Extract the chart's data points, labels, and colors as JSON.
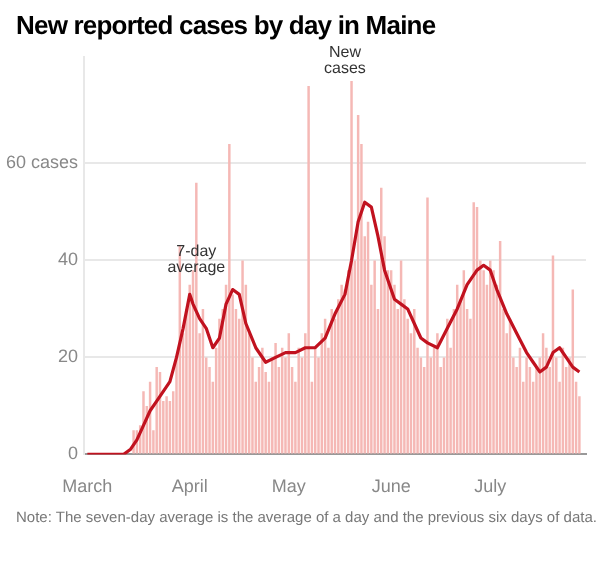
{
  "chart_data": {
    "type": "bar",
    "title": "New reported cases by day in Maine",
    "x": [
      "--03-01",
      "--03-02",
      "--03-03",
      "--03-04",
      "--03-05",
      "--03-06",
      "--03-07",
      "--03-08",
      "--03-09",
      "--03-10",
      "--03-11",
      "--03-12",
      "--03-13",
      "--03-14",
      "--03-15",
      "--03-16",
      "--03-17",
      "--03-18",
      "--03-19",
      "--03-20",
      "--03-21",
      "--03-22",
      "--03-23",
      "--03-24",
      "--03-25",
      "--03-26",
      "--03-27",
      "--03-28",
      "--03-29",
      "--03-30",
      "--03-31",
      "--04-01",
      "--04-02",
      "--04-03",
      "--04-04",
      "--04-05",
      "--04-06",
      "--04-07",
      "--04-08",
      "--04-09",
      "--04-10",
      "--04-11",
      "--04-12",
      "--04-13",
      "--04-14",
      "--04-15",
      "--04-16",
      "--04-17",
      "--04-18",
      "--04-19",
      "--04-20",
      "--04-21",
      "--04-22",
      "--04-23",
      "--04-24",
      "--04-25",
      "--04-26",
      "--04-27",
      "--04-28",
      "--04-29",
      "--04-30",
      "--05-01",
      "--05-02",
      "--05-03",
      "--05-04",
      "--05-05",
      "--05-06",
      "--05-07",
      "--05-08",
      "--05-09",
      "--05-10",
      "--05-11",
      "--05-12",
      "--05-13",
      "--05-14",
      "--05-15",
      "--05-16",
      "--05-17",
      "--05-18",
      "--05-19",
      "--05-20",
      "--05-21",
      "--05-22",
      "--05-23",
      "--05-24",
      "--05-25",
      "--05-26",
      "--05-27",
      "--05-28",
      "--05-29",
      "--05-30",
      "--05-31",
      "--06-01",
      "--06-02",
      "--06-03",
      "--06-04",
      "--06-05",
      "--06-06",
      "--06-07",
      "--06-08",
      "--06-09",
      "--06-10",
      "--06-11",
      "--06-12",
      "--06-13",
      "--06-14",
      "--06-15",
      "--06-16",
      "--06-17",
      "--06-18",
      "--06-19",
      "--06-20",
      "--06-21",
      "--06-22",
      "--06-23",
      "--06-24",
      "--06-25",
      "--06-26",
      "--06-27",
      "--06-28",
      "--06-29",
      "--06-30",
      "--07-01",
      "--07-02",
      "--07-03",
      "--07-04",
      "--07-05",
      "--07-06",
      "--07-07",
      "--07-08",
      "--07-09",
      "--07-10",
      "--07-11",
      "--07-12",
      "--07-13",
      "--07-14",
      "--07-15",
      "--07-16",
      "--07-17",
      "--07-18",
      "--07-19",
      "--07-20",
      "--07-21",
      "--07-22",
      "--07-23",
      "--07-24",
      "--07-25",
      "--07-26",
      "--07-27",
      "--07-28"
    ],
    "series": [
      {
        "color": "#f5b8b5",
        "values": [
          0,
          0,
          0,
          0,
          0,
          0,
          0,
          0,
          0,
          0,
          0,
          0,
          0,
          null,
          5,
          5,
          6,
          13,
          10,
          15,
          5,
          18,
          17,
          11,
          12,
          11,
          13,
          20,
          43,
          25,
          30,
          35,
          38,
          56,
          25,
          30,
          20,
          18,
          15,
          22,
          28,
          30,
          35,
          64,
          33,
          30,
          28,
          40,
          35,
          25,
          20,
          15,
          18,
          22,
          17,
          15,
          20,
          23,
          18,
          22,
          20,
          25,
          18,
          15,
          22,
          20,
          25,
          76,
          15,
          22,
          20,
          25,
          28,
          22,
          30,
          28,
          32,
          35,
          34,
          38,
          77,
          40,
          70,
          64,
          45,
          48,
          35,
          40,
          30,
          55,
          45,
          38,
          38,
          35,
          30,
          40,
          32,
          28,
          25,
          30,
          22,
          20,
          18,
          53,
          20,
          22,
          25,
          18,
          20,
          28,
          22,
          30,
          35,
          32,
          38,
          30,
          28,
          52,
          51,
          40,
          38,
          35,
          40,
          38,
          35,
          44,
          30,
          25,
          28,
          20,
          18,
          22,
          15,
          20,
          18,
          15,
          18,
          20,
          25,
          22,
          18,
          41,
          20,
          15,
          22,
          18,
          20,
          34,
          15,
          12
        ]
      },
      {
        "type": "line",
        "color": "#c1121f",
        "x": [
          "--03-01",
          "--03-12",
          "--03-14",
          "--03-16",
          "--03-18",
          "--03-20",
          "--03-22",
          "--03-24",
          "--03-26",
          "--03-28",
          "--03-30",
          "--04-01",
          "--04-02",
          "--04-04",
          "--04-06",
          "--04-08",
          "--04-10",
          "--04-12",
          "--04-14",
          "--04-16",
          "--04-18",
          "--04-21",
          "--04-24",
          "--04-27",
          "--04-30",
          "--05-03",
          "--05-06",
          "--05-09",
          "--05-12",
          "--05-15",
          "--05-18",
          "--05-20",
          "--05-22",
          "--05-24",
          "--05-26",
          "--05-28",
          "--05-30",
          "--06-02",
          "--06-04",
          "--06-06",
          "--06-08",
          "--06-10",
          "--06-12",
          "--06-15",
          "--06-18",
          "--06-21",
          "--06-24",
          "--06-27",
          "--06-29",
          "--07-01",
          "--07-03",
          "--07-06",
          "--07-09",
          "--07-12",
          "--07-14",
          "--07-16",
          "--07-18",
          "--07-20",
          "--07-22",
          "--07-24",
          "--07-26",
          "--07-28"
        ],
        "values": [
          0,
          0,
          1,
          3,
          6,
          9,
          11,
          13,
          15,
          20,
          26,
          33,
          31,
          28,
          26,
          22,
          24,
          31,
          34,
          33,
          27,
          22,
          19,
          20,
          21,
          21,
          22,
          22,
          24,
          29,
          33,
          40,
          48,
          52,
          51,
          45,
          38,
          32,
          31,
          30,
          27,
          24,
          23,
          22,
          26,
          30,
          35,
          38,
          39,
          38,
          34,
          29,
          25,
          21,
          19,
          17,
          18,
          21,
          22,
          20,
          18,
          17
        ]
      }
    ],
    "xlim": [
      "--02-28",
      "--07-30"
    ],
    "xticks": [
      {
        "value": "--03-01",
        "label": "March"
      },
      {
        "value": "--04-01",
        "label": "April"
      },
      {
        "value": "--05-01",
        "label": "May"
      },
      {
        "value": "--06-01",
        "label": "June"
      },
      {
        "value": "--07-01",
        "label": "July"
      }
    ],
    "ylim": [
      0,
      82
    ],
    "yticks": [
      0,
      20,
      40,
      {
        "value": 60,
        "label": "60 cases"
      }
    ],
    "grid": "y",
    "legend": false,
    "marker": "none",
    "line_style": "solid",
    "annotations": [
      {
        "text": "7-day average",
        "x": "--04-03",
        "y": 36
      },
      {
        "text": "New cases",
        "x": "--05-18",
        "y": 77
      },
      "Note: The seven-day average is the average of a day and the previous six days of data."
    ]
  }
}
